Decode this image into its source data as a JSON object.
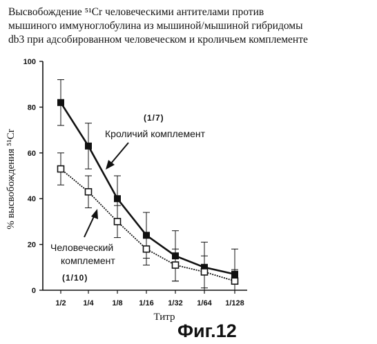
{
  "title_lines": [
    "Высвобождение ⁵¹Cr человеческими антителами против",
    "мышиного иммуноглобулина из мышиной/мышиной гибридомы",
    "db3 при адсобированном человеческом и кроличьем комплементе"
  ],
  "figure_label": "Фиг.12",
  "chart_data": {
    "type": "line",
    "categories": [
      "1/2",
      "1/4",
      "1/8",
      "1/16",
      "1/32",
      "1/64",
      "1/128"
    ],
    "xlabel": "Титр",
    "ylabel": "% высвобождения ⁵¹Cr",
    "ylim": [
      0,
      100
    ],
    "yticks": [
      0,
      20,
      40,
      60,
      80,
      100
    ],
    "grid": false,
    "series": [
      {
        "name": "Кроличий комплемент",
        "ratio": "(1/7)",
        "marker": "filled-square",
        "line": "solid",
        "color": "#111111",
        "values": [
          82,
          63,
          40,
          24,
          15,
          10,
          7
        ],
        "err": [
          10,
          10,
          10,
          10,
          11,
          11,
          11
        ]
      },
      {
        "name": "Человеческий комплемент",
        "ratio": "(1/10)",
        "marker": "open-square",
        "line": "dotted",
        "color": "#111111",
        "values": [
          53,
          43,
          30,
          18,
          11,
          8,
          4
        ],
        "err": [
          7,
          7,
          7,
          7,
          7,
          7,
          5
        ]
      }
    ]
  }
}
